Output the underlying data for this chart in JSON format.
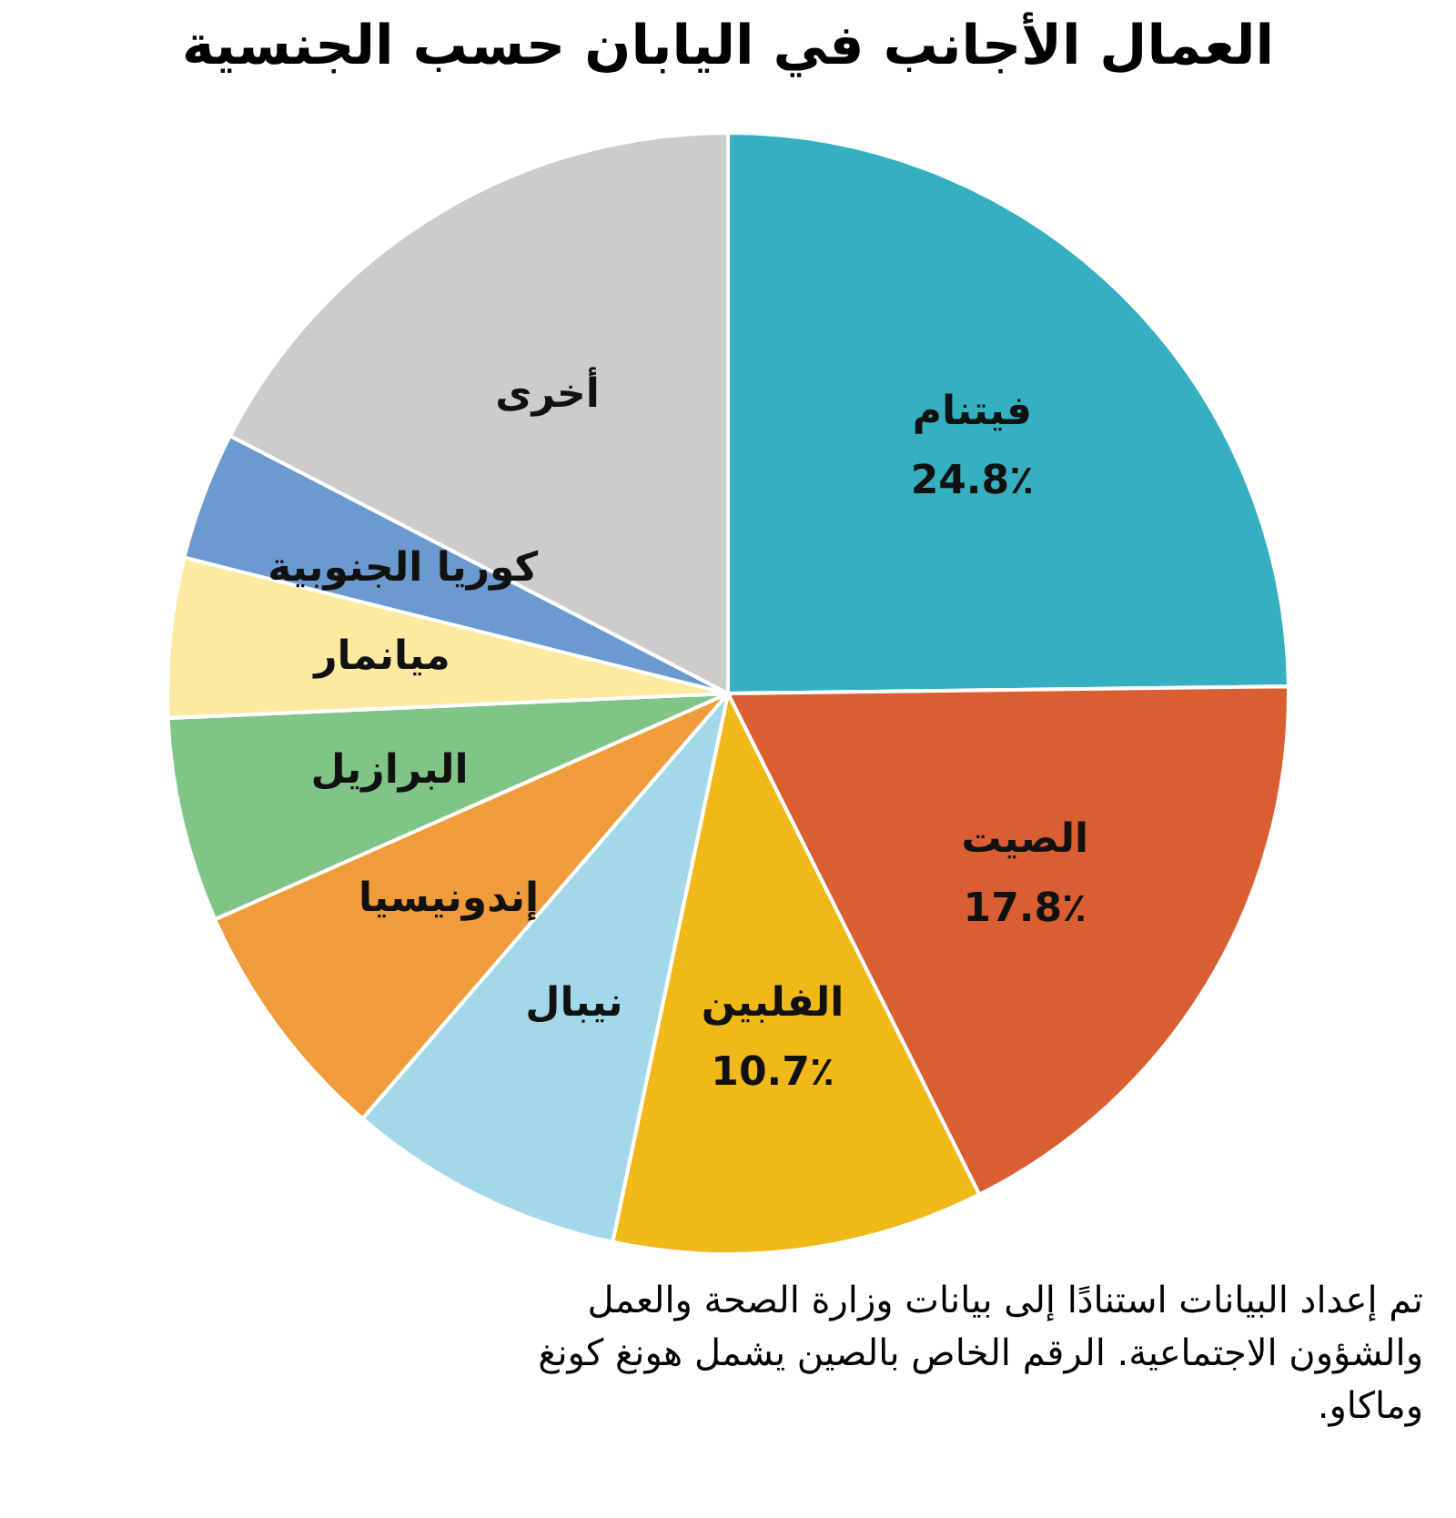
{
  "chart_data": {
    "type": "pie",
    "title": "العمال الأجانب في اليابان حسب الجنسية",
    "categories": [
      "فيتنام",
      "الصيت",
      "الفلبين",
      "نيبال",
      "إندونيسيا",
      "البرازيل",
      "ميانمار",
      "كوريا الجنوبية",
      "أخرى"
    ],
    "values": [
      24.8,
      17.8,
      10.7,
      8.0,
      7.1,
      5.9,
      4.6,
      3.7,
      17.4
    ],
    "colors": [
      "#35b0c0",
      "#d95f33",
      "#f0b919",
      "#a3d8ea",
      "#f09c3a",
      "#80c487",
      "#fde9a0",
      "#6a9acf",
      "#cccccc"
    ],
    "value_labels": [
      "24.8٪",
      "17.8٪",
      "10.7٪",
      null,
      null,
      null,
      null,
      null,
      null
    ],
    "legend": false,
    "annotations": [
      "تم إعداد البيانات استنادًا إلى بيانات وزارة الصحة والعمل والشؤون الاجتماعية. الرقم الخاص بالصين يشمل هونغ كونغ وماكاو."
    ]
  }
}
